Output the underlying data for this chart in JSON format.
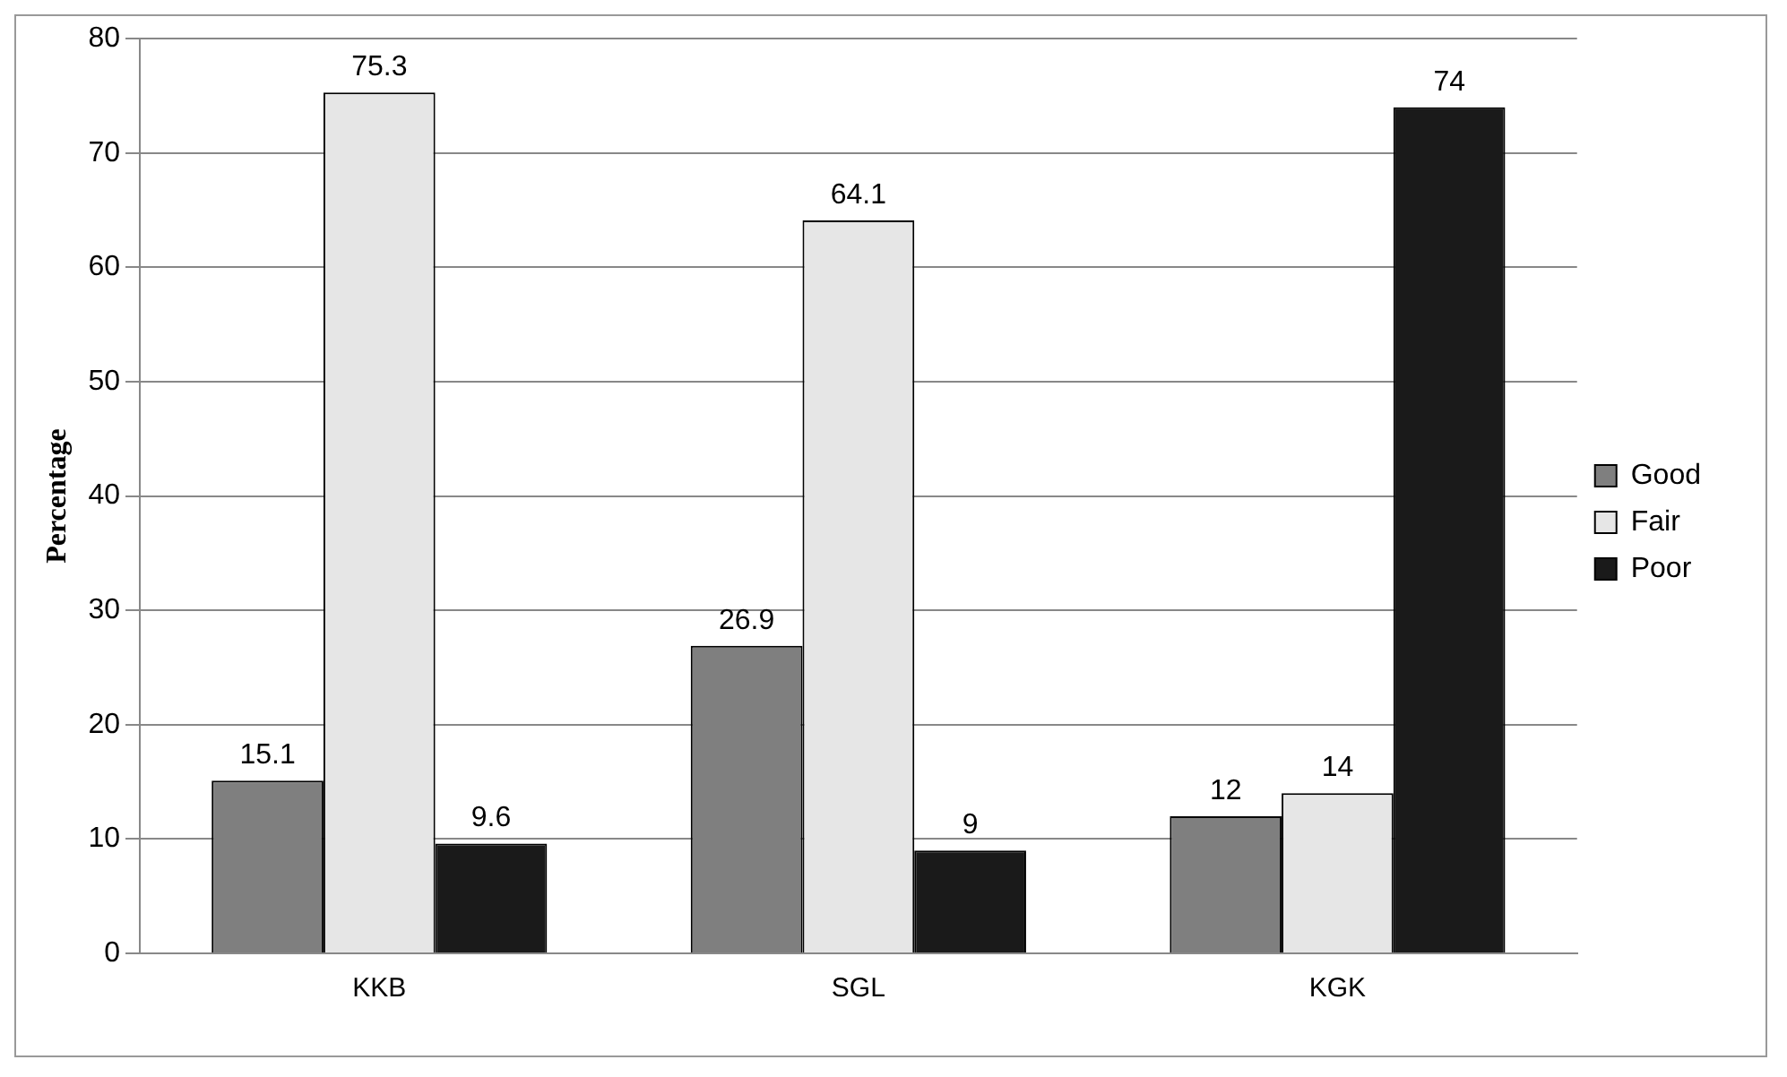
{
  "chart_data": {
    "type": "bar",
    "ylabel": "Percentage",
    "categories": [
      "KKB",
      "SGL",
      "KGK"
    ],
    "series": [
      {
        "name": "Good",
        "color": "#7f7f7f",
        "values": [
          15.1,
          26.9,
          12
        ]
      },
      {
        "name": "Fair",
        "color": "#e6e6e6",
        "values": [
          75.3,
          64.1,
          14
        ]
      },
      {
        "name": "Poor",
        "color": "#1a1a1a",
        "values": [
          9.6,
          9,
          74
        ]
      }
    ],
    "ylim": [
      0,
      80
    ],
    "yticks": [
      0,
      10,
      20,
      30,
      40,
      50,
      60,
      70,
      80
    ],
    "grid": "y",
    "legend": "right",
    "data_labels": true
  }
}
